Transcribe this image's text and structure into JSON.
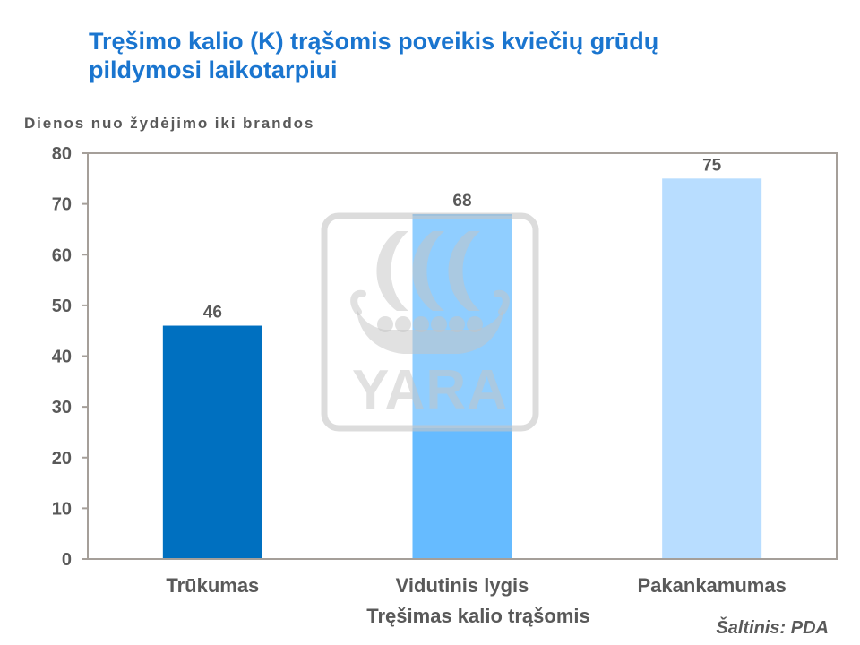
{
  "colors": {
    "title": "#1a75cf",
    "text": "#595959",
    "axis": "#a59f99",
    "watermark": "#c4c4c4"
  },
  "source": "Šaltinis: PDA",
  "watermark": {
    "logo_text": "YARA"
  },
  "chart_data": {
    "type": "bar",
    "title": [
      "Tręšimo kalio (K) trąšomis poveikis kviečių grūdų",
      "pildymosi laikotarpiui"
    ],
    "ylabel": "Dienos nuo žydėjimo iki brandos",
    "xlabel": "Tręšimas kalio trąšomis",
    "categories": [
      "Trūkumas",
      "Vidutinis lygis",
      "Pakankamumas"
    ],
    "values": [
      46,
      68,
      75
    ],
    "bar_colors": [
      "#0070c0",
      "#66bbff",
      "#b8ddff"
    ],
    "ylim": [
      0,
      80
    ],
    "yticks": [
      0,
      10,
      20,
      30,
      40,
      50,
      60,
      70,
      80
    ],
    "data_labels": true,
    "grid": false,
    "legend": false
  }
}
